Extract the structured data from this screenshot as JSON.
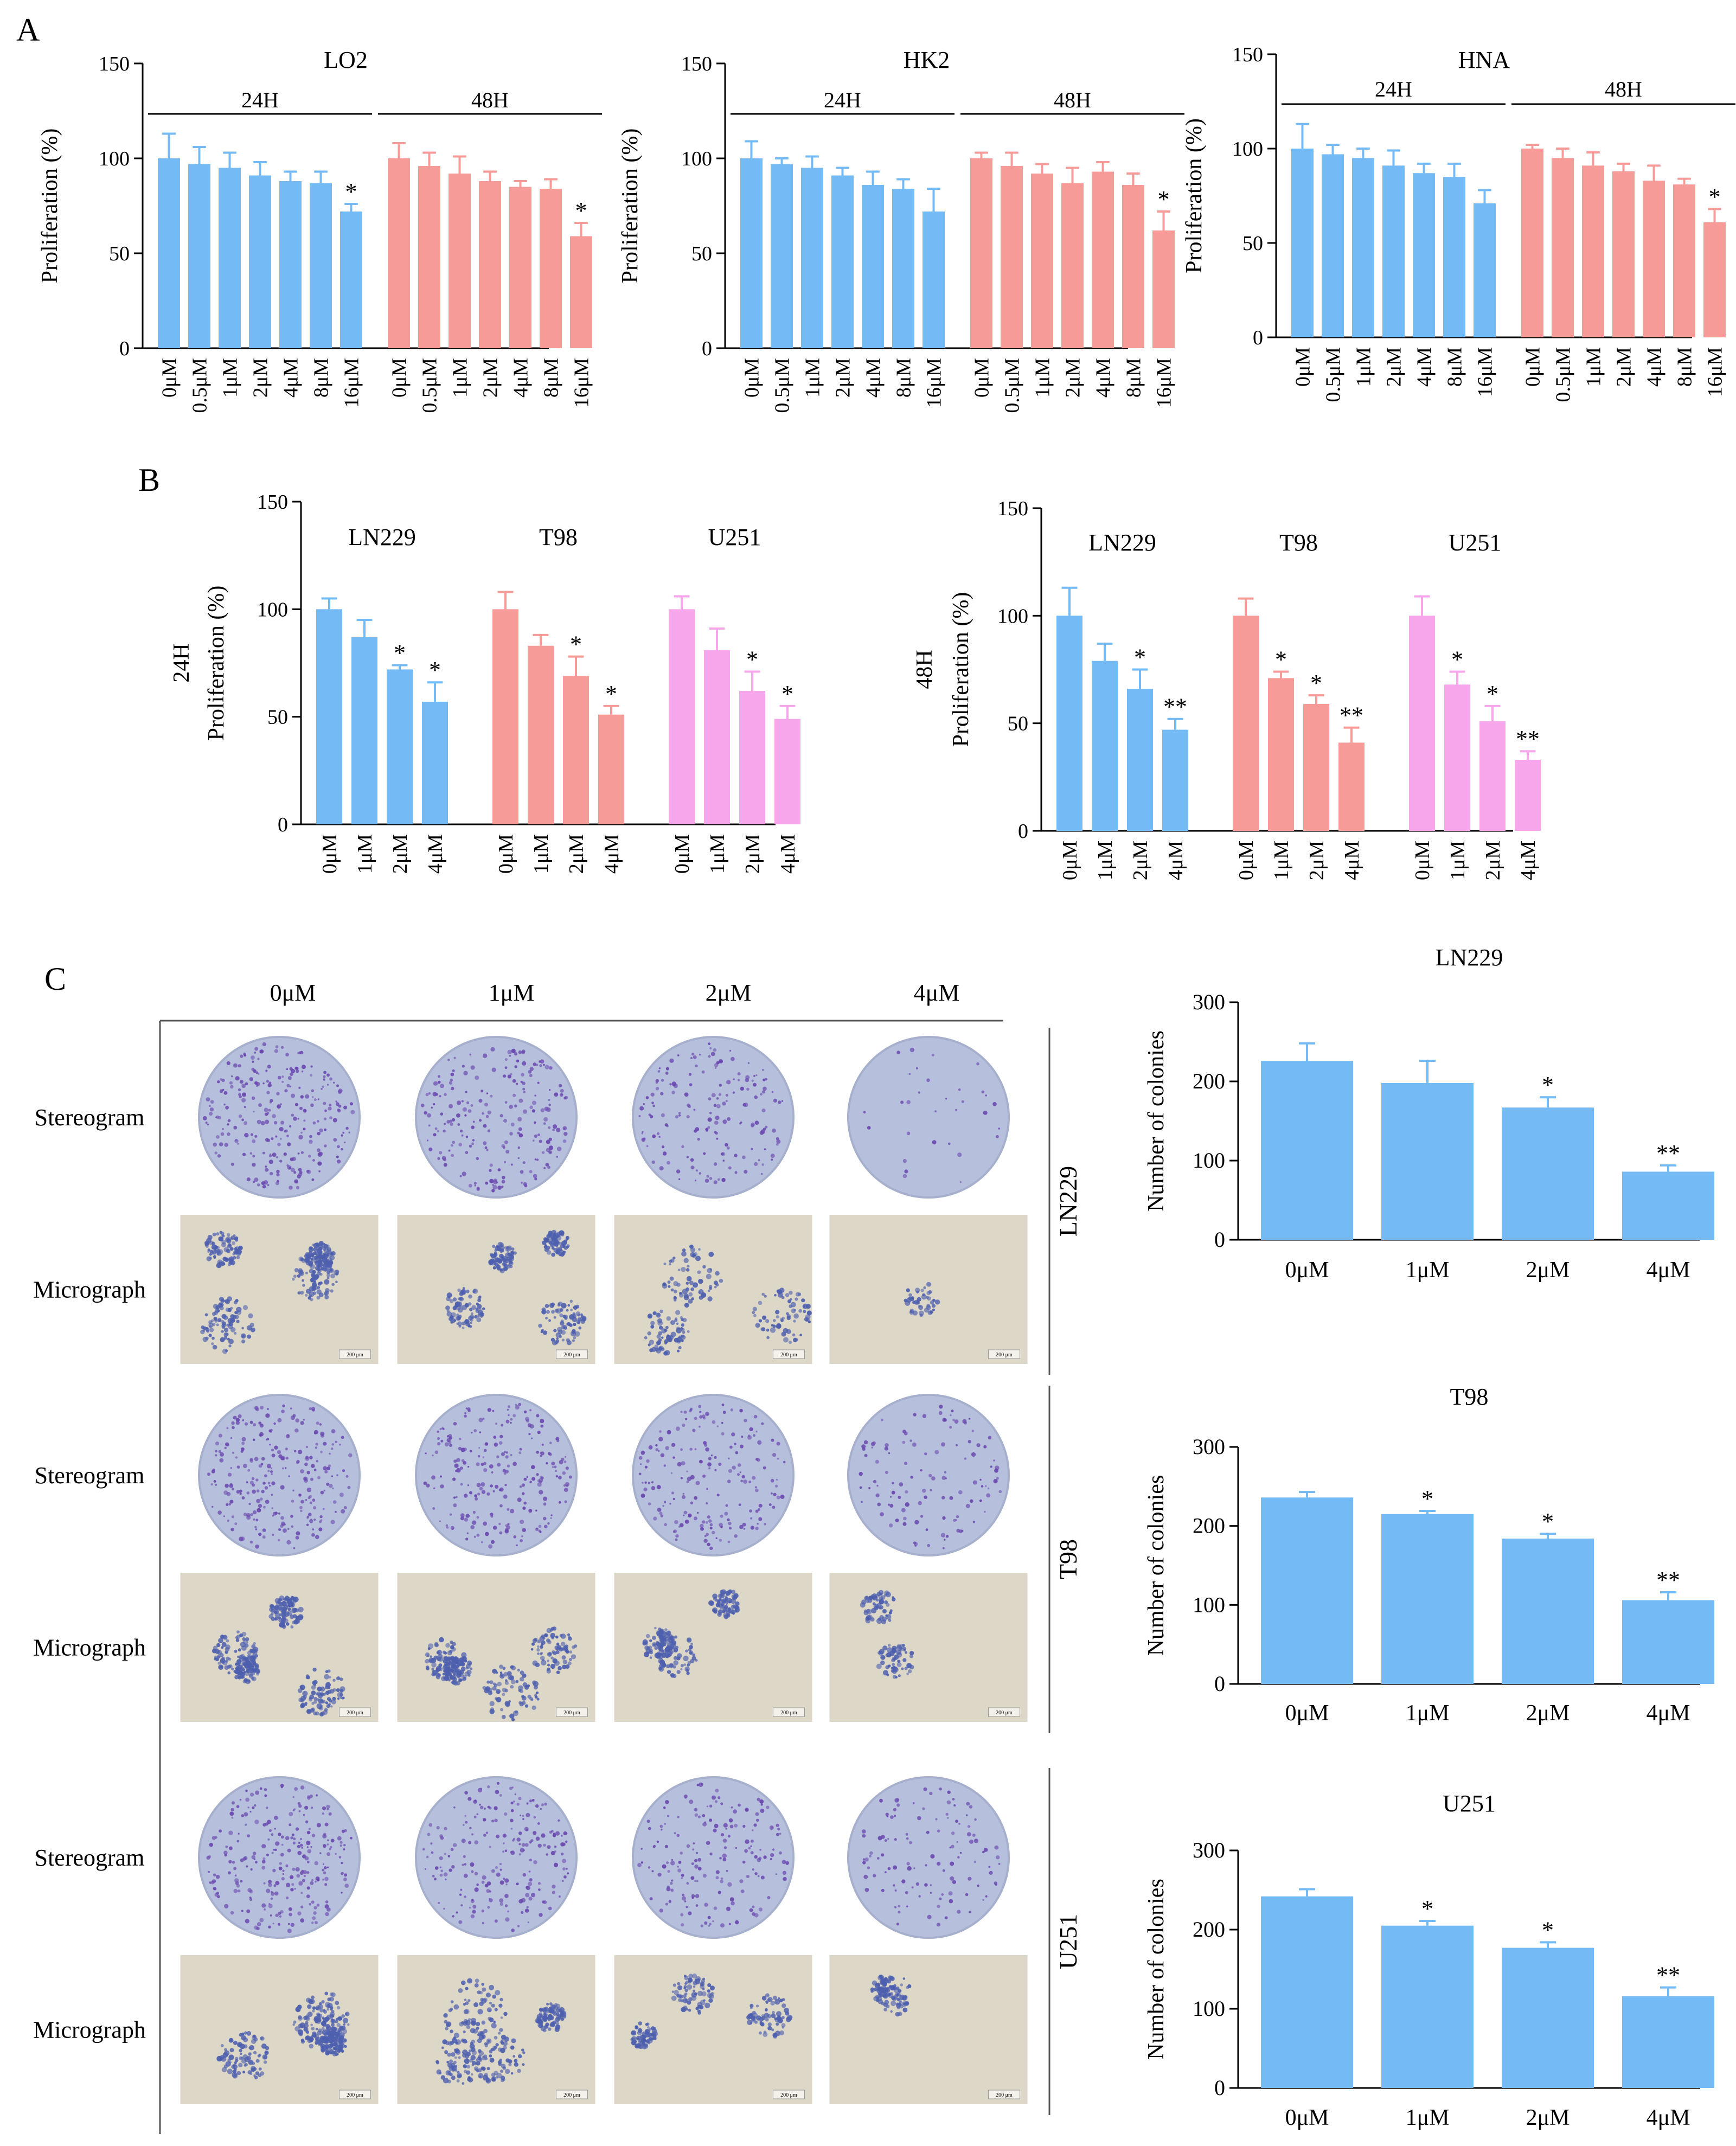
{
  "panels": {
    "A": "A",
    "B": "B",
    "C": "C"
  },
  "colors": {
    "blue": "#74bbf5",
    "salmon": "#f79b98",
    "pink": "#f7a6ec",
    "plate": "#b6bfdb",
    "plate_edge": "#a6afcc",
    "colony": "#6a48b0",
    "micro_bg": "#ddd7c8",
    "micro_colony": "#4d5fae"
  },
  "chart_data": [
    {
      "id": "A-LO2",
      "type": "bar",
      "title": "LO2",
      "ylabel": "Proliferation (%)",
      "ylim": [
        0,
        150
      ],
      "yticks": [
        0,
        50,
        100,
        150
      ],
      "categories": [
        "0μM",
        "0.5μM",
        "1μM",
        "2μM",
        "4μM",
        "8μM",
        "16μM",
        "0μM",
        "0.5μM",
        "1μM",
        "2μM",
        "4μM",
        "8μM",
        "16μM"
      ],
      "groups": [
        {
          "label": "24H",
          "start": 0,
          "end": 6,
          "color": "blue"
        },
        {
          "label": "48H",
          "start": 7,
          "end": 13,
          "color": "salmon"
        }
      ],
      "values": [
        100,
        97,
        95,
        91,
        88,
        87,
        72,
        100,
        96,
        92,
        88,
        85,
        84,
        59
      ],
      "errors": [
        13,
        9,
        8,
        7,
        5,
        6,
        4,
        8,
        7,
        9,
        5,
        3,
        5,
        7
      ],
      "sig": [
        "",
        "",
        "",
        "",
        "",
        "",
        "*",
        "",
        "",
        "",
        "",
        "",
        "",
        "*"
      ]
    },
    {
      "id": "A-HK2",
      "type": "bar",
      "title": "HK2",
      "ylabel": "Proliferation (%)",
      "ylim": [
        0,
        150
      ],
      "yticks": [
        0,
        50,
        100,
        150
      ],
      "categories": [
        "0μM",
        "0.5μM",
        "1μM",
        "2μM",
        "4μM",
        "8μM",
        "16μM",
        "0μM",
        "0.5μM",
        "1μM",
        "2μM",
        "4μM",
        "8μM",
        "16μM"
      ],
      "groups": [
        {
          "label": "24H",
          "start": 0,
          "end": 6,
          "color": "blue"
        },
        {
          "label": "48H",
          "start": 7,
          "end": 13,
          "color": "salmon"
        }
      ],
      "values": [
        100,
        97,
        95,
        91,
        86,
        84,
        72,
        100,
        96,
        92,
        87,
        93,
        86,
        62
      ],
      "errors": [
        9,
        3,
        6,
        4,
        7,
        5,
        12,
        3,
        7,
        5,
        8,
        5,
        6,
        10
      ],
      "sig": [
        "",
        "",
        "",
        "",
        "",
        "",
        "",
        "",
        "",
        "",
        "",
        "",
        "",
        "*"
      ]
    },
    {
      "id": "A-HNA",
      "type": "bar",
      "title": "HNA",
      "ylabel": "Proliferation (%)",
      "ylim": [
        0,
        150
      ],
      "yticks": [
        0,
        50,
        100,
        150
      ],
      "categories": [
        "0μM",
        "0.5μM",
        "1μM",
        "2μM",
        "4μM",
        "8μM",
        "16μM",
        "0μM",
        "0.5μM",
        "1μM",
        "2μM",
        "4μM",
        "8μM",
        "16μM"
      ],
      "groups": [
        {
          "label": "24H",
          "start": 0,
          "end": 6,
          "color": "blue"
        },
        {
          "label": "48H",
          "start": 7,
          "end": 13,
          "color": "salmon"
        }
      ],
      "values": [
        100,
        97,
        95,
        91,
        87,
        85,
        71,
        100,
        95,
        91,
        88,
        83,
        81,
        61
      ],
      "errors": [
        13,
        5,
        5,
        8,
        5,
        7,
        7,
        2,
        5,
        7,
        4,
        8,
        3,
        7
      ],
      "sig": [
        "",
        "",
        "",
        "",
        "",
        "",
        "",
        "",
        "",
        "",
        "",
        "",
        "",
        "*"
      ]
    },
    {
      "id": "B-24H",
      "type": "bar",
      "ylabel": "Proliferation (%)",
      "ylabel2": "24H",
      "ylim": [
        0,
        150
      ],
      "yticks": [
        0,
        50,
        100,
        150
      ],
      "categories": [
        "0μM",
        "1μM",
        "2μM",
        "4μM",
        "0μM",
        "1μM",
        "2μM",
        "4μM",
        "0μM",
        "1μM",
        "2μM",
        "4μM"
      ],
      "groups": [
        {
          "label": "LN229",
          "start": 0,
          "end": 3,
          "color": "blue"
        },
        {
          "label": "T98",
          "start": 4,
          "end": 7,
          "color": "salmon"
        },
        {
          "label": "U251",
          "start": 8,
          "end": 11,
          "color": "pink"
        }
      ],
      "values": [
        100,
        87,
        72,
        57,
        100,
        83,
        69,
        51,
        100,
        81,
        62,
        49
      ],
      "errors": [
        5,
        8,
        2,
        9,
        8,
        5,
        9,
        4,
        6,
        10,
        9,
        6
      ],
      "sig": [
        "",
        "",
        "*",
        "*",
        "",
        "",
        "*",
        "*",
        "",
        "",
        "*",
        "*"
      ]
    },
    {
      "id": "B-48H",
      "type": "bar",
      "ylabel": "Proliferation (%)",
      "ylabel2": "48H",
      "ylim": [
        0,
        150
      ],
      "yticks": [
        0,
        50,
        100,
        150
      ],
      "categories": [
        "0μM",
        "1μM",
        "2μM",
        "4μM",
        "0μM",
        "1μM",
        "2μM",
        "4μM",
        "0μM",
        "1μM",
        "2μM",
        "4μM"
      ],
      "groups": [
        {
          "label": "LN229",
          "start": 0,
          "end": 3,
          "color": "blue"
        },
        {
          "label": "T98",
          "start": 4,
          "end": 7,
          "color": "salmon"
        },
        {
          "label": "U251",
          "start": 8,
          "end": 11,
          "color": "pink"
        }
      ],
      "values": [
        100,
        79,
        66,
        47,
        100,
        71,
        59,
        41,
        100,
        68,
        51,
        33
      ],
      "errors": [
        13,
        8,
        9,
        5,
        8,
        3,
        4,
        7,
        9,
        6,
        7,
        4
      ],
      "sig": [
        "",
        "",
        "*",
        "**",
        "",
        "*",
        "*",
        "**",
        "",
        "*",
        "*",
        "**"
      ]
    },
    {
      "id": "C-LN229",
      "type": "bar",
      "title": "LN229",
      "ylabel": "Number of colonies",
      "ylim": [
        0,
        300
      ],
      "yticks": [
        0,
        100,
        200,
        300
      ],
      "categories": [
        "0μM",
        "1μM",
        "2μM",
        "4μM"
      ],
      "values": [
        226,
        198,
        167,
        86
      ],
      "errors": [
        22,
        28,
        13,
        8
      ],
      "sig": [
        "",
        "",
        "*",
        "**"
      ]
    },
    {
      "id": "C-T98",
      "type": "bar",
      "title": "T98",
      "ylabel": "Number of colonies",
      "ylim": [
        0,
        300
      ],
      "yticks": [
        0,
        100,
        200,
        300
      ],
      "categories": [
        "0μM",
        "1μM",
        "2μM",
        "4μM"
      ],
      "values": [
        236,
        215,
        184,
        106
      ],
      "errors": [
        7,
        4,
        6,
        10
      ],
      "sig": [
        "",
        "*",
        "*",
        "**"
      ]
    },
    {
      "id": "C-U251",
      "type": "bar",
      "title": "U251",
      "ylabel": "Number of colonies",
      "ylim": [
        0,
        300
      ],
      "yticks": [
        0,
        100,
        200,
        300
      ],
      "categories": [
        "0μM",
        "1μM",
        "2μM",
        "4μM"
      ],
      "values": [
        242,
        205,
        177,
        116
      ],
      "errors": [
        9,
        6,
        7,
        11
      ],
      "sig": [
        "",
        "*",
        "*",
        "**"
      ]
    }
  ],
  "colony_assay": {
    "concentrations": [
      "0μM",
      "1μM",
      "2μM",
      "4μM"
    ],
    "row_labels": {
      "stereogram": "Stereogram",
      "micrograph": "Micrograph"
    },
    "cell_lines": [
      "LN229",
      "T98",
      "U251"
    ],
    "colony_density": [
      [
        1.0,
        0.85,
        0.65,
        0.12
      ],
      [
        1.0,
        0.9,
        0.75,
        0.45
      ],
      [
        1.0,
        0.85,
        0.7,
        0.45
      ]
    ],
    "scale_bar": "200 μm"
  }
}
